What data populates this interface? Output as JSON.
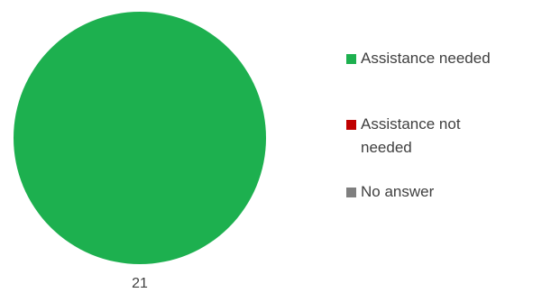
{
  "chart_data": {
    "type": "pie",
    "title": "",
    "categories": [
      "Assistance needed",
      "Assistance not needed",
      "No answer"
    ],
    "values": [
      21,
      0,
      0
    ],
    "colors": [
      "#1db04f",
      "#c00000",
      "#7f7f7f"
    ],
    "data_labels": [
      "21"
    ],
    "legend_position": "right"
  }
}
